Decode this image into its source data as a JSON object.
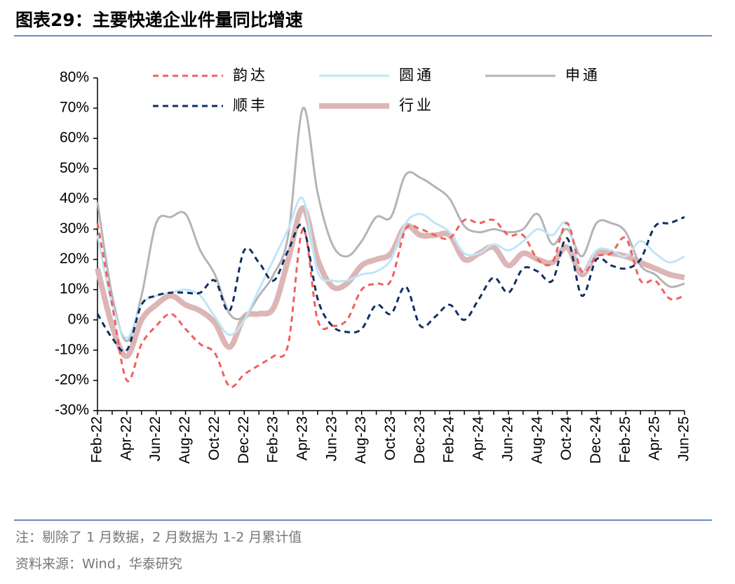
{
  "chart_data": {
    "type": "line",
    "title": "图表29：主要快递企业件量同比增速",
    "note": "注：剔除了 1 月数据，2 月数据为 1-2 月累计值",
    "source": "资料来源：Wind，华泰研究",
    "categories": [
      "Feb-22",
      null,
      "Apr-22",
      null,
      "Jun-22",
      null,
      "Aug-22",
      null,
      "Oct-22",
      null,
      "Dec-22",
      null,
      "Feb-23",
      null,
      "Apr-23",
      null,
      "Jun-23",
      null,
      "Aug-23",
      null,
      "Oct-23",
      null,
      "Dec-23",
      null,
      "Feb-24",
      null,
      "Apr-24",
      null,
      "Jun-24",
      null,
      "Aug-24",
      null,
      "Oct-24",
      null,
      "Dec-24",
      null,
      "Feb-25",
      null,
      "Apr-25",
      null,
      "Jun-25"
    ],
    "ylim": [
      -30,
      80
    ],
    "yticks": [
      {
        "value": -30,
        "label": "-30%"
      },
      {
        "value": -20,
        "label": "-20%"
      },
      {
        "value": -10,
        "label": "-10%"
      },
      {
        "value": 0,
        "label": "0%"
      },
      {
        "value": 10,
        "label": "10%"
      },
      {
        "value": 20,
        "label": "20%"
      },
      {
        "value": 30,
        "label": "30%"
      },
      {
        "value": 40,
        "label": "40%"
      },
      {
        "value": 50,
        "label": "50%"
      },
      {
        "value": 60,
        "label": "60%"
      },
      {
        "value": 70,
        "label": "70%"
      },
      {
        "value": 80,
        "label": "80%"
      }
    ],
    "series": [
      {
        "name": "韵达",
        "color": "#f0605d",
        "dash": true,
        "width": 3,
        "values": [
          32,
          5,
          -20,
          -8,
          -2,
          2,
          -3,
          -8,
          -11,
          -22,
          -18,
          -15,
          -12,
          -8,
          30,
          0,
          -2,
          0,
          10,
          12,
          13,
          30,
          30,
          28,
          27,
          33,
          32,
          33,
          28,
          28,
          20,
          19,
          32,
          16,
          21,
          22,
          27,
          13,
          13,
          7,
          8
        ]
      },
      {
        "name": "圆通",
        "color": "#bfe6f7",
        "dash": false,
        "width": 3,
        "values": [
          28,
          5,
          -6,
          5,
          8,
          9,
          10,
          8,
          1,
          -5,
          0,
          10,
          20,
          30,
          40,
          16,
          13,
          13,
          15,
          16,
          20,
          32,
          35,
          32,
          29,
          22,
          22,
          25,
          23,
          26,
          30,
          28,
          32,
          16,
          23,
          23,
          21,
          26,
          22,
          19,
          21
        ]
      },
      {
        "name": "申通",
        "color": "#b4b4b4",
        "dash": false,
        "width": 3,
        "values": [
          39,
          8,
          -7,
          8,
          32,
          34,
          35,
          23,
          15,
          2,
          1,
          8,
          15,
          28,
          70,
          42,
          25,
          21,
          26,
          34,
          34,
          48,
          47,
          44,
          40,
          31,
          29,
          30,
          29,
          30,
          35,
          25,
          30,
          21,
          32,
          32,
          29,
          18,
          15,
          11,
          12
        ]
      },
      {
        "name": "顺丰",
        "color": "#102f63",
        "dash": true,
        "width": 3,
        "values": [
          2,
          -6,
          -10,
          5,
          8,
          9,
          9,
          9,
          13,
          3,
          23,
          19,
          13,
          23,
          31,
          7,
          -2,
          -4,
          -3,
          5,
          2,
          11,
          -2,
          1,
          5,
          0,
          7,
          14,
          9,
          17,
          16,
          13,
          27,
          8,
          20,
          18,
          17,
          20,
          31,
          32,
          34
        ]
      },
      {
        "name": "行业",
        "color": "#dcb6b5",
        "dash": false,
        "width": 8,
        "values": [
          17,
          -2,
          -12,
          0,
          5,
          8,
          5,
          3,
          -1,
          -9,
          1,
          2,
          4,
          20,
          37,
          20,
          11,
          12,
          18,
          20,
          22,
          31,
          28,
          28,
          28,
          20,
          22,
          24,
          18,
          22,
          20,
          19,
          24,
          15,
          22,
          22,
          21,
          19,
          17,
          15,
          14
        ]
      }
    ]
  }
}
